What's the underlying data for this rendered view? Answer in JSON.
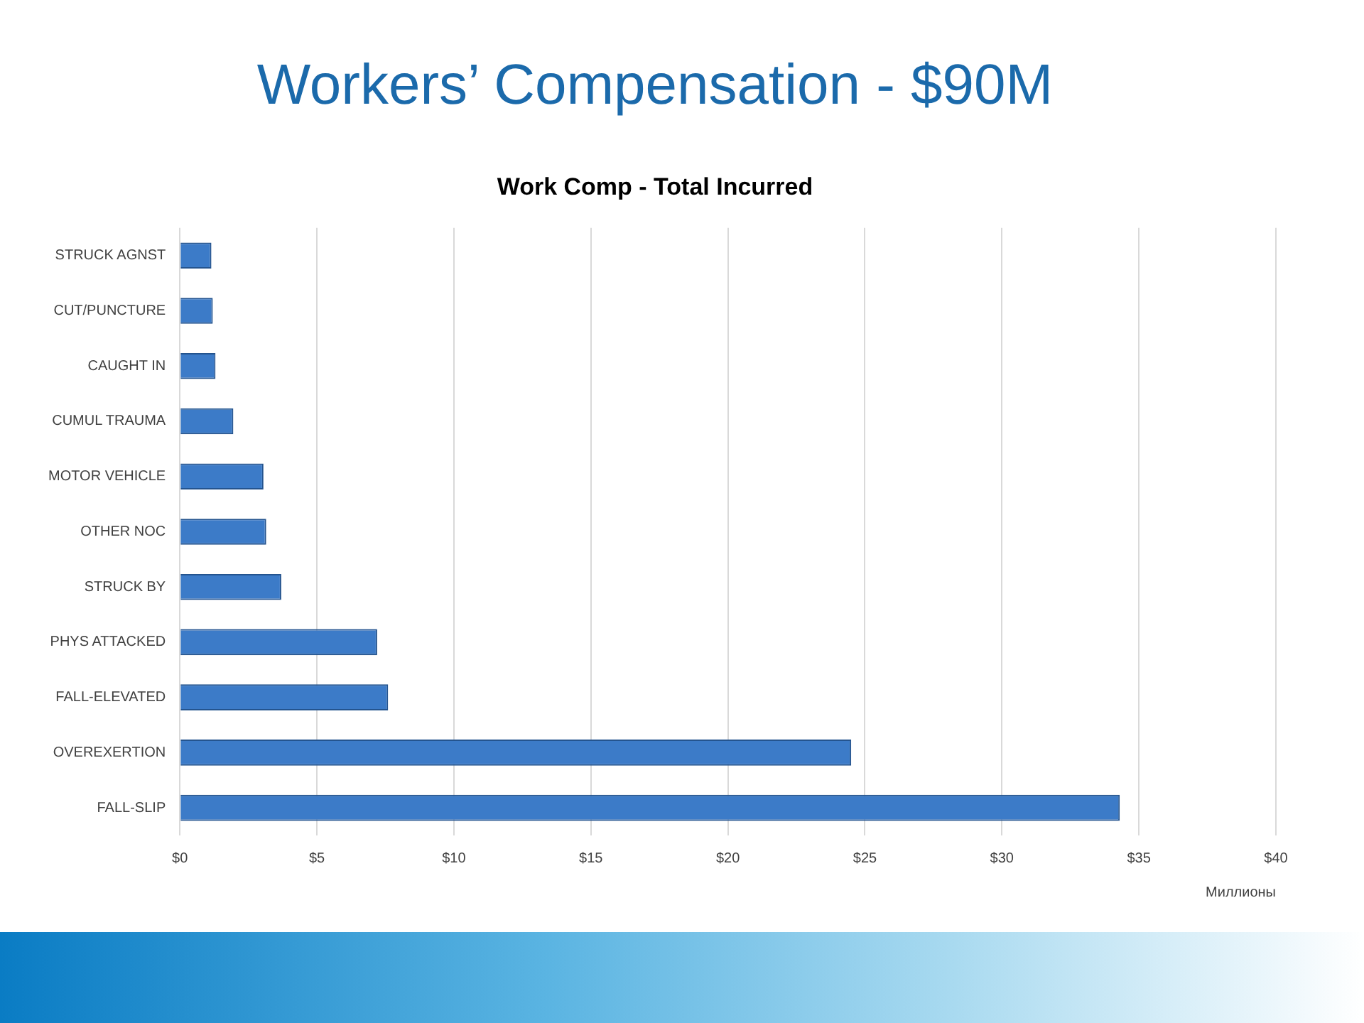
{
  "chart_data": {
    "type": "bar",
    "orientation": "horizontal",
    "title": "Workers’ Compensation - $90M",
    "subtitle": "Work Comp - Total Incurred",
    "xlabel": "Миллионы",
    "categories": [
      "STRUCK AGNST",
      "CUT/PUNCTURE",
      "CAUGHT IN",
      "CUMUL TRAUMA",
      "MOTOR VEHICLE",
      "OTHER NOC",
      "STRUCK BY",
      "PHYS ATTACKED",
      "FALL-ELEVATED",
      "OVEREXERTION",
      "FALL-SLIP"
    ],
    "values": [
      1.15,
      1.2,
      1.3,
      1.95,
      3.05,
      3.15,
      3.7,
      7.2,
      7.6,
      24.5,
      34.3
    ],
    "color": "#3c7bc8",
    "xlim": [
      0,
      40
    ],
    "xticks": [
      {
        "value": 0,
        "label": "$0"
      },
      {
        "value": 5,
        "label": "$5"
      },
      {
        "value": 10,
        "label": "$10"
      },
      {
        "value": 15,
        "label": "$15"
      },
      {
        "value": 20,
        "label": "$20"
      },
      {
        "value": 25,
        "label": "$25"
      },
      {
        "value": 30,
        "label": "$30"
      },
      {
        "value": 35,
        "label": "$35"
      },
      {
        "value": 40,
        "label": "$40"
      }
    ],
    "grid": "x"
  }
}
